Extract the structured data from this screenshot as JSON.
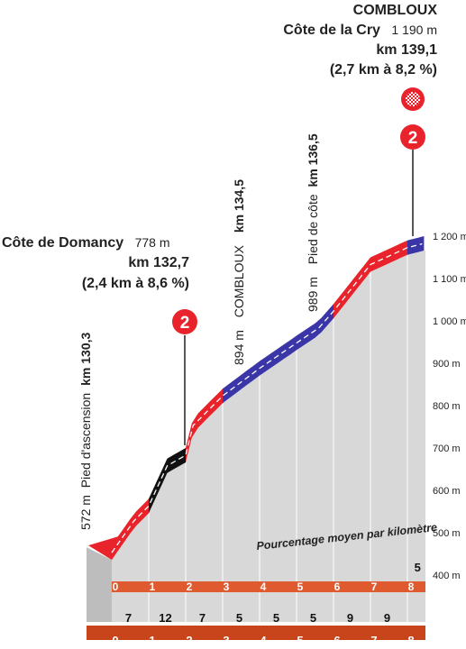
{
  "chart_data": {
    "type": "area",
    "title": "",
    "xlabel": "",
    "ylabel": "",
    "y_unit": "m",
    "yticks": [
      "400 m",
      "500 m",
      "600 m",
      "700 m",
      "800 m",
      "900 m",
      "1 000 m",
      "1 100 m",
      "1 200 m"
    ],
    "ytick_values": [
      400,
      500,
      600,
      700,
      800,
      900,
      1000,
      1100,
      1200
    ],
    "xticks": [
      "0",
      "1",
      "2",
      "3",
      "4",
      "5",
      "6",
      "7",
      "8"
    ],
    "x_values_km": [
      0,
      1,
      2,
      3,
      4,
      5,
      6,
      7,
      8
    ],
    "xlim": [
      0,
      8.45
    ],
    "ylim": [
      385,
      1230
    ],
    "profile": {
      "x": [
        0,
        0.6,
        1,
        1.5,
        2,
        2.2,
        3,
        4,
        5,
        5.6,
        6,
        7,
        8,
        8.45
      ],
      "y": [
        470,
        545,
        580,
        675,
        700,
        770,
        840,
        905,
        965,
        1000,
        1040,
        1150,
        1190,
        1200
      ]
    },
    "segments": [
      {
        "from": 0.0,
        "to": 1.0,
        "gradient": "7",
        "color": "#e8232b"
      },
      {
        "from": 1.0,
        "to": 2.0,
        "gradient": "12",
        "color": "#111111"
      },
      {
        "from": 2.0,
        "to": 3.0,
        "gradient": "7",
        "color": "#e8232b"
      },
      {
        "from": 3.0,
        "to": 4.0,
        "gradient": "5",
        "color": "#3b36a8"
      },
      {
        "from": 4.0,
        "to": 5.0,
        "gradient": "5",
        "color": "#3b36a8"
      },
      {
        "from": 5.0,
        "to": 6.0,
        "gradient": "5",
        "color": "#3b36a8"
      },
      {
        "from": 6.0,
        "to": 7.0,
        "gradient": "9",
        "color": "#e8232b"
      },
      {
        "from": 7.0,
        "to": 8.0,
        "gradient": "9",
        "color": "#e8232b"
      },
      {
        "from": 8.0,
        "to": 8.45,
        "gradient": "5",
        "color": "#3b36a8"
      }
    ],
    "gradient_label": "Pourcentage moyen par kilomètre",
    "gridline_km": [
      1,
      2,
      3,
      4,
      5,
      6,
      7,
      8
    ]
  },
  "annotations": {
    "start": {
      "altitude": "572 m",
      "prefix": "Pied d'ascension",
      "km": "km 130,3"
    },
    "domancy": {
      "name": "Côte de Domancy",
      "altitude": "778 m",
      "km": "km 132,7",
      "detail": "(2,4 km à 8,6 %)",
      "category": "2"
    },
    "combloux_mid": {
      "altitude": "894 m",
      "name": "COMBLOUX",
      "km": "km 134,5"
    },
    "pied_cote": {
      "altitude": "989 m",
      "prefix": "Pied de côte",
      "km": "km 136,5"
    },
    "summit": {
      "town": "COMBLOUX",
      "name": "Côte de la Cry",
      "altitude": "1 190 m",
      "km": "km 139,1",
      "detail": "(2,7 km à 8,2 %)",
      "category": "2"
    }
  },
  "colors": {
    "red": "#e8232b",
    "blue": "#3b36a8",
    "black": "#111111",
    "area": "#d8d8d8",
    "axis_bar": "#c8441a"
  }
}
